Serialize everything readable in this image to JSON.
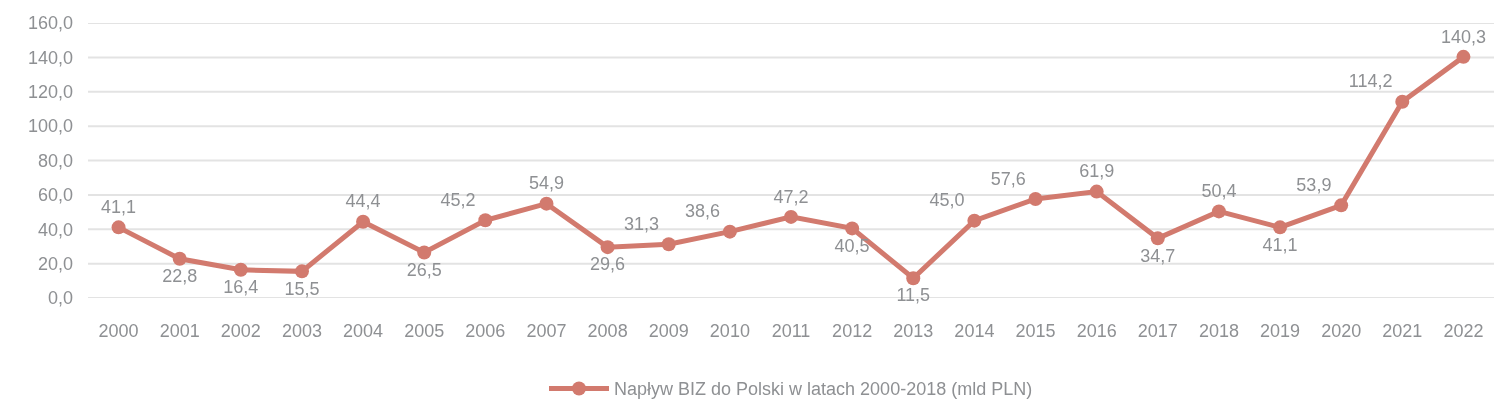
{
  "chart_data": {
    "type": "line",
    "categories": [
      "2000",
      "2001",
      "2002",
      "2003",
      "2004",
      "2005",
      "2006",
      "2007",
      "2008",
      "2009",
      "2010",
      "2011",
      "2012",
      "2013",
      "2014",
      "2015",
      "2016",
      "2017",
      "2018",
      "2019",
      "2020",
      "2021",
      "2022"
    ],
    "series": [
      {
        "name": "Napływ BIZ do Polski w latach 2000-2018 (mld PLN)",
        "color": "#d27a6e",
        "values": [
          41.1,
          22.8,
          16.4,
          15.5,
          44.4,
          26.5,
          45.2,
          54.9,
          29.6,
          31.3,
          38.6,
          47.2,
          40.5,
          11.5,
          45.0,
          57.6,
          61.9,
          34.7,
          50.4,
          41.1,
          53.9,
          114.2,
          140.3
        ],
        "value_labels": [
          "41,1",
          "22,8",
          "16,4",
          "15,5",
          "44,4",
          "26,5",
          "45,2",
          "54,9",
          "29,6",
          "31,3",
          "38,6",
          "47,2",
          "40,5",
          "11,5",
          "45,0",
          "57,6",
          "61,9",
          "34,7",
          "50,4",
          "41,1",
          "53,9",
          "114,2",
          "140,3"
        ]
      }
    ],
    "ylim": [
      0,
      160
    ],
    "yticks": [
      {
        "value": 0,
        "label": "0,0"
      },
      {
        "value": 20,
        "label": "20,0"
      },
      {
        "value": 40,
        "label": "40,0"
      },
      {
        "value": 60,
        "label": "60,0"
      },
      {
        "value": 80,
        "label": "80,0"
      },
      {
        "value": 100,
        "label": "100,0"
      },
      {
        "value": 120,
        "label": "120,0"
      },
      {
        "value": 140,
        "label": "140,0"
      },
      {
        "value": 160,
        "label": "160,0"
      }
    ],
    "grid": "y",
    "legend": "bottom",
    "marker": "circle",
    "line_style": "solid"
  }
}
